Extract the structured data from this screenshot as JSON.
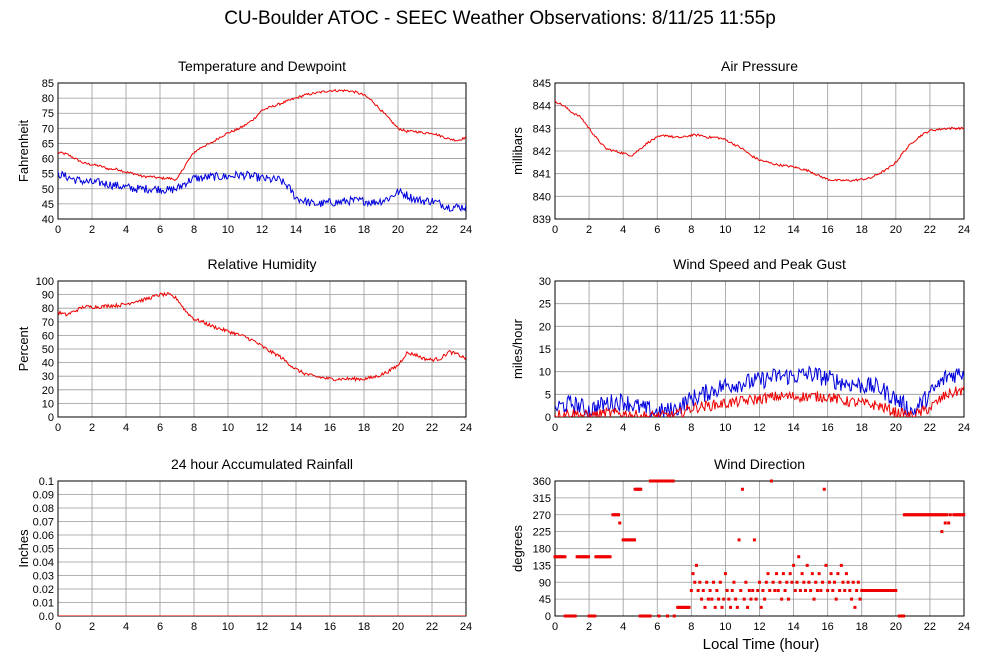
{
  "title": "CU-Boulder ATOC - SEEC Weather Observations: 8/11/25 11:55p",
  "xlabel": "Local Time (hour)",
  "colors": {
    "red": "#ee0000",
    "blue": "#0000dd",
    "grid": "#999999"
  },
  "chart_data": [
    {
      "type": "line",
      "title": "Temperature and Dewpoint",
      "ylabel": "Fahrenheit",
      "xlim": [
        0,
        24
      ],
      "ylim": [
        40,
        85
      ],
      "xticks": [
        0,
        2,
        4,
        6,
        8,
        10,
        12,
        14,
        16,
        18,
        20,
        22,
        24
      ],
      "yticks": [
        40,
        45,
        50,
        55,
        60,
        65,
        70,
        75,
        80,
        85
      ],
      "grid": true,
      "series": [
        {
          "color": "red",
          "noise": 0.4,
          "x": [
            0,
            0.5,
            1,
            1.5,
            2,
            2.5,
            3,
            3.5,
            4,
            4.5,
            5,
            5.5,
            6,
            6.5,
            7,
            7.5,
            8,
            8.5,
            9,
            9.5,
            10,
            10.5,
            11,
            11.5,
            12,
            12.5,
            13,
            13.5,
            14,
            14.5,
            15,
            15.5,
            16,
            16.5,
            17,
            17.5,
            18,
            18.5,
            19,
            19.5,
            20,
            20.5,
            21,
            21.5,
            22,
            22.5,
            23,
            23.5,
            24
          ],
          "y": [
            62,
            61.5,
            60,
            58.5,
            58,
            57.5,
            56.5,
            56.5,
            55.5,
            55,
            54,
            54,
            53.5,
            53.5,
            53,
            58,
            62,
            64,
            65,
            67,
            68.5,
            69.5,
            71,
            73,
            76,
            77,
            78,
            79,
            80,
            81,
            81.5,
            82,
            82.5,
            82.5,
            82.5,
            82,
            81,
            79,
            76,
            73,
            70,
            69,
            69,
            68.5,
            68.5,
            67.5,
            66.5,
            66,
            67
          ]
        },
        {
          "color": "blue",
          "noise": 1.4,
          "x": [
            0,
            0.5,
            1,
            1.5,
            2,
            2.5,
            3,
            3.5,
            4,
            4.5,
            5,
            5.5,
            6,
            6.5,
            7,
            7.5,
            8,
            8.5,
            9,
            9.5,
            10,
            10.5,
            11,
            11.5,
            12,
            12.5,
            13,
            13.5,
            14,
            14.5,
            15,
            15.5,
            16,
            16.5,
            17,
            17.5,
            18,
            18.5,
            19,
            19.5,
            20,
            20.5,
            21,
            21.5,
            22,
            22.5,
            23,
            23.5,
            24
          ],
          "y": [
            55,
            54,
            53,
            52.5,
            52,
            52,
            51.5,
            51,
            50.5,
            50,
            50,
            50,
            50,
            49.5,
            50,
            52,
            53.5,
            53.5,
            54,
            54,
            54,
            54.5,
            54.5,
            54,
            53.5,
            53,
            53,
            51,
            47,
            46,
            45,
            45,
            45.5,
            45.5,
            46,
            46,
            46,
            45.5,
            46,
            47,
            49,
            48,
            46.5,
            46,
            46,
            45,
            44,
            44,
            44
          ]
        }
      ]
    },
    {
      "type": "line",
      "title": "Air Pressure",
      "ylabel": "millibars",
      "xlim": [
        0,
        24
      ],
      "ylim": [
        839,
        845
      ],
      "xticks": [
        0,
        2,
        4,
        6,
        8,
        10,
        12,
        14,
        16,
        18,
        20,
        22,
        24
      ],
      "yticks": [
        839,
        840,
        841,
        842,
        843,
        844,
        845
      ],
      "grid": true,
      "series": [
        {
          "color": "red",
          "noise": 0.05,
          "x": [
            0,
            0.5,
            1,
            1.5,
            2,
            2.5,
            3,
            3.5,
            4,
            4.5,
            5,
            5.5,
            6,
            6.5,
            7,
            7.5,
            8,
            8.5,
            9,
            9.5,
            10,
            10.5,
            11,
            11.5,
            12,
            12.5,
            13,
            13.5,
            14,
            14.5,
            15,
            15.5,
            16,
            16.5,
            17,
            17.5,
            18,
            18.5,
            19,
            19.5,
            20,
            20.5,
            21,
            21.5,
            22,
            22.5,
            23,
            23.5,
            24
          ],
          "y": [
            844.2,
            844,
            843.7,
            843.5,
            843,
            842.5,
            842.1,
            842,
            841.9,
            841.8,
            842.1,
            842.4,
            842.6,
            842.7,
            842.6,
            842.6,
            842.7,
            842.7,
            842.6,
            842.6,
            842.5,
            842.3,
            842.1,
            841.8,
            841.6,
            841.5,
            841.4,
            841.35,
            841.3,
            841.2,
            841.1,
            840.9,
            840.75,
            840.7,
            840.7,
            840.7,
            840.75,
            840.8,
            841,
            841.2,
            841.5,
            842,
            842.4,
            842.7,
            842.9,
            842.95,
            843,
            843,
            843
          ]
        }
      ]
    },
    {
      "type": "line",
      "title": "Relative Humidity",
      "ylabel": "Percent",
      "xlim": [
        0,
        24
      ],
      "ylim": [
        0,
        100
      ],
      "xticks": [
        0,
        2,
        4,
        6,
        8,
        10,
        12,
        14,
        16,
        18,
        20,
        22,
        24
      ],
      "yticks": [
        0,
        10,
        20,
        30,
        40,
        50,
        60,
        70,
        80,
        90,
        100
      ],
      "grid": true,
      "series": [
        {
          "color": "red",
          "noise": 1.3,
          "x": [
            0,
            0.5,
            1,
            1.5,
            2,
            2.5,
            3,
            3.5,
            4,
            4.5,
            5,
            5.5,
            6,
            6.5,
            7,
            7.5,
            8,
            8.5,
            9,
            9.5,
            10,
            10.5,
            11,
            11.5,
            12,
            12.5,
            13,
            13.5,
            14,
            14.5,
            15,
            15.5,
            16,
            16.5,
            17,
            17.5,
            18,
            18.5,
            19,
            19.5,
            20,
            20.5,
            21,
            21.5,
            22,
            22.5,
            23,
            23.5,
            24
          ],
          "y": [
            77,
            75,
            78,
            81,
            81,
            81,
            82,
            82,
            83,
            85,
            86,
            88,
            90,
            90,
            87,
            78,
            72,
            70,
            67,
            65,
            63,
            61,
            59,
            56,
            52,
            48,
            45,
            40,
            35,
            32,
            30,
            29,
            28,
            28,
            28,
            28,
            28,
            29,
            31,
            34,
            38,
            47,
            46,
            43,
            42,
            43,
            48,
            46,
            43
          ]
        }
      ]
    },
    {
      "type": "line",
      "title": "Wind Speed and Peak Gust",
      "ylabel": "miles/hour",
      "xlim": [
        0,
        24
      ],
      "ylim": [
        0,
        30
      ],
      "xticks": [
        0,
        2,
        4,
        6,
        8,
        10,
        12,
        14,
        16,
        18,
        20,
        22,
        24
      ],
      "yticks": [
        0,
        5,
        10,
        15,
        20,
        25,
        30
      ],
      "grid": true,
      "series": [
        {
          "color": "blue",
          "noise": 2.0,
          "x": [
            0,
            1,
            2,
            3,
            4,
            5,
            6,
            7,
            8,
            9,
            10,
            11,
            12,
            13,
            14,
            15,
            16,
            17,
            18,
            19,
            20,
            21,
            22,
            23,
            24
          ],
          "y": [
            2,
            3,
            1.5,
            3,
            3.5,
            2,
            1,
            1.5,
            4,
            5.5,
            7,
            7.5,
            8,
            9,
            9,
            9.5,
            8.5,
            7.5,
            7,
            6.5,
            4,
            1,
            5,
            9,
            10
          ]
        },
        {
          "color": "red",
          "noise": 1.2,
          "x": [
            0,
            1,
            2,
            3,
            4,
            5,
            6,
            7,
            8,
            9,
            10,
            11,
            12,
            13,
            14,
            15,
            16,
            17,
            18,
            19,
            20,
            21,
            22,
            23,
            24
          ],
          "y": [
            0.5,
            0.8,
            0.2,
            0.8,
            0.8,
            0.2,
            0.2,
            0.3,
            2,
            2.5,
            3,
            3.5,
            4,
            4.5,
            4.5,
            4.5,
            4.5,
            3.5,
            3,
            2.5,
            1,
            0.2,
            2,
            5,
            6
          ]
        }
      ]
    },
    {
      "type": "line",
      "title": "24 hour Accumulated Rainfall",
      "ylabel": "Inches",
      "xlim": [
        0,
        24
      ],
      "ylim": [
        0,
        0.1
      ],
      "xticks": [
        0,
        2,
        4,
        6,
        8,
        10,
        12,
        14,
        16,
        18,
        20,
        22,
        24
      ],
      "yticks": [
        "0.0",
        "0.01",
        "0.02",
        "0.03",
        "0.04",
        "0.05",
        "0.06",
        "0.07",
        "0.08",
        "0.09",
        "0.1"
      ],
      "grid": true,
      "series": [
        {
          "color": "red",
          "noise": 0,
          "x": [
            0,
            24
          ],
          "y": [
            0,
            0
          ]
        }
      ]
    },
    {
      "type": "scatter",
      "title": "Wind Direction",
      "ylabel": "degrees",
      "xlim": [
        0,
        24
      ],
      "ylim": [
        0,
        360
      ],
      "xticks": [
        0,
        2,
        4,
        6,
        8,
        10,
        12,
        14,
        16,
        18,
        20,
        22,
        24
      ],
      "yticks": [
        0,
        45,
        90,
        135,
        180,
        225,
        270,
        315,
        360
      ],
      "grid": true,
      "segments": [
        {
          "x0": 0,
          "x1": 0.6,
          "y": 158
        },
        {
          "x0": 0.6,
          "x1": 1.2,
          "y": 0
        },
        {
          "x0": 1.3,
          "x1": 2.0,
          "y": 158
        },
        {
          "x0": 2.0,
          "x1": 2.4,
          "y": 0
        },
        {
          "x0": 2.4,
          "x1": 3.3,
          "y": 158
        },
        {
          "x0": 3.4,
          "x1": 3.8,
          "y": 270
        },
        {
          "x0": 4.0,
          "x1": 4.7,
          "y": 203
        },
        {
          "x0": 4.7,
          "x1": 5.1,
          "y": 338
        },
        {
          "x0": 5.0,
          "x1": 5.6,
          "y": 0
        },
        {
          "x0": 5.6,
          "x1": 7.0,
          "y": 360
        },
        {
          "x0": 7.2,
          "x1": 7.9,
          "y": 23
        },
        {
          "x0": 18.0,
          "x1": 20.0,
          "y": 68
        },
        {
          "x0": 20.2,
          "x1": 20.5,
          "y": 0
        },
        {
          "x0": 20.5,
          "x1": 23.0,
          "y": 270
        },
        {
          "x0": 23.4,
          "x1": 24,
          "y": 270
        }
      ],
      "points": [
        [
          3.8,
          248
        ],
        [
          6.1,
          0
        ],
        [
          6.6,
          0
        ],
        [
          7.0,
          0
        ],
        [
          8.0,
          68
        ],
        [
          8.1,
          113
        ],
        [
          8.2,
          90
        ],
        [
          8.3,
          135
        ],
        [
          8.4,
          68
        ],
        [
          8.5,
          90
        ],
        [
          8.6,
          45
        ],
        [
          8.7,
          68
        ],
        [
          8.8,
          23
        ],
        [
          8.9,
          90
        ],
        [
          9.0,
          45
        ],
        [
          9.1,
          68
        ],
        [
          9.2,
          45
        ],
        [
          9.3,
          90
        ],
        [
          9.4,
          23
        ],
        [
          9.5,
          68
        ],
        [
          9.6,
          45
        ],
        [
          9.7,
          90
        ],
        [
          9.8,
          23
        ],
        [
          9.9,
          45
        ],
        [
          10.0,
          113
        ],
        [
          10.1,
          68
        ],
        [
          10.2,
          45
        ],
        [
          10.3,
          23
        ],
        [
          10.4,
          68
        ],
        [
          10.5,
          90
        ],
        [
          10.6,
          45
        ],
        [
          10.7,
          23
        ],
        [
          10.8,
          203
        ],
        [
          10.9,
          68
        ],
        [
          11.0,
          338
        ],
        [
          11.1,
          45
        ],
        [
          11.2,
          90
        ],
        [
          11.3,
          23
        ],
        [
          11.4,
          68
        ],
        [
          11.5,
          45
        ],
        [
          11.6,
          68
        ],
        [
          11.7,
          203
        ],
        [
          11.8,
          45
        ],
        [
          11.9,
          68
        ],
        [
          12.0,
          90
        ],
        [
          12.1,
          23
        ],
        [
          12.2,
          68
        ],
        [
          12.3,
          45
        ],
        [
          12.4,
          90
        ],
        [
          12.5,
          113
        ],
        [
          12.6,
          68
        ],
        [
          12.7,
          360
        ],
        [
          12.8,
          90
        ],
        [
          12.9,
          68
        ],
        [
          13.0,
          113
        ],
        [
          13.1,
          68
        ],
        [
          13.2,
          90
        ],
        [
          13.3,
          45
        ],
        [
          13.4,
          113
        ],
        [
          13.5,
          68
        ],
        [
          13.6,
          90
        ],
        [
          13.7,
          45
        ],
        [
          13.8,
          113
        ],
        [
          13.9,
          90
        ],
        [
          14.0,
          135
        ],
        [
          14.1,
          68
        ],
        [
          14.2,
          90
        ],
        [
          14.3,
          158
        ],
        [
          14.4,
          68
        ],
        [
          14.5,
          113
        ],
        [
          14.6,
          90
        ],
        [
          14.7,
          68
        ],
        [
          14.8,
          135
        ],
        [
          14.9,
          90
        ],
        [
          15.0,
          68
        ],
        [
          15.1,
          113
        ],
        [
          15.2,
          45
        ],
        [
          15.3,
          90
        ],
        [
          15.4,
          68
        ],
        [
          15.5,
          113
        ],
        [
          15.6,
          68
        ],
        [
          15.7,
          90
        ],
        [
          15.8,
          338
        ],
        [
          15.9,
          135
        ],
        [
          16.0,
          68
        ],
        [
          16.1,
          90
        ],
        [
          16.2,
          113
        ],
        [
          16.3,
          68
        ],
        [
          16.4,
          90
        ],
        [
          16.5,
          45
        ],
        [
          16.6,
          113
        ],
        [
          16.7,
          68
        ],
        [
          16.8,
          135
        ],
        [
          16.9,
          90
        ],
        [
          17.0,
          68
        ],
        [
          17.1,
          113
        ],
        [
          17.2,
          90
        ],
        [
          17.3,
          68
        ],
        [
          17.4,
          45
        ],
        [
          17.5,
          90
        ],
        [
          17.6,
          23
        ],
        [
          17.7,
          68
        ],
        [
          17.8,
          90
        ],
        [
          17.9,
          45
        ],
        [
          22.7,
          225
        ],
        [
          22.9,
          248
        ],
        [
          23.1,
          248
        ],
        [
          23.2,
          270
        ]
      ]
    }
  ]
}
